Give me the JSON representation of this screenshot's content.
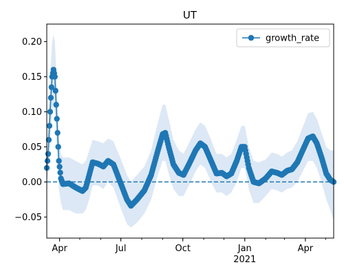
{
  "chart_data": {
    "type": "line",
    "title": "UT",
    "xlabel": "",
    "ylabel": "",
    "x_range": [
      "2020-03-13",
      "2021-05-13"
    ],
    "ylim": [
      -0.08,
      0.225
    ],
    "y_ticks": [
      -0.05,
      0.0,
      0.05,
      0.1,
      0.15,
      0.2
    ],
    "y_tick_labels": [
      "−0.05",
      "0.00",
      "0.05",
      "0.10",
      "0.15",
      "0.20"
    ],
    "x_ticks": [
      {
        "date": "2020-04-01",
        "label": "Apr",
        "sublabel": ""
      },
      {
        "date": "2020-07-01",
        "label": "Jul",
        "sublabel": ""
      },
      {
        "date": "2020-10-01",
        "label": "Oct",
        "sublabel": ""
      },
      {
        "date": "2021-01-01",
        "label": "Jan",
        "sublabel": "2021"
      },
      {
        "date": "2021-04-01",
        "label": "Apr",
        "sublabel": ""
      }
    ],
    "reference_line": {
      "y": 0,
      "style": "dashed"
    },
    "grid": false,
    "legend": {
      "position": "top-right",
      "entries": [
        "growth_rate"
      ]
    },
    "colors": {
      "line": "#1f77b4",
      "band": "#dce8f5",
      "reference": "#1f77b4"
    },
    "series": [
      {
        "name": "growth_rate",
        "interval": "shaded uncertainty band",
        "points": [
          {
            "date": "2020-03-13",
            "y": 0.02,
            "lo": 0.0,
            "hi": 0.05
          },
          {
            "date": "2020-03-15",
            "y": 0.04,
            "lo": 0.01,
            "hi": 0.08
          },
          {
            "date": "2020-03-17",
            "y": 0.08,
            "lo": 0.04,
            "hi": 0.13
          },
          {
            "date": "2020-03-19",
            "y": 0.12,
            "lo": 0.07,
            "hi": 0.17
          },
          {
            "date": "2020-03-21",
            "y": 0.15,
            "lo": 0.1,
            "hi": 0.2
          },
          {
            "date": "2020-03-23",
            "y": 0.16,
            "lo": 0.11,
            "hi": 0.21
          },
          {
            "date": "2020-03-25",
            "y": 0.15,
            "lo": 0.1,
            "hi": 0.2
          },
          {
            "date": "2020-03-27",
            "y": 0.11,
            "lo": 0.06,
            "hi": 0.16
          },
          {
            "date": "2020-03-29",
            "y": 0.07,
            "lo": 0.025,
            "hi": 0.115
          },
          {
            "date": "2020-03-31",
            "y": 0.03,
            "lo": -0.01,
            "hi": 0.07
          },
          {
            "date": "2020-04-03",
            "y": 0.005,
            "lo": -0.03,
            "hi": 0.04
          },
          {
            "date": "2020-04-06",
            "y": -0.003,
            "lo": -0.04,
            "hi": 0.035
          },
          {
            "date": "2020-04-15",
            "y": -0.002,
            "lo": -0.04,
            "hi": 0.035
          },
          {
            "date": "2020-04-25",
            "y": -0.008,
            "lo": -0.045,
            "hi": 0.03
          },
          {
            "date": "2020-05-05",
            "y": -0.013,
            "lo": -0.045,
            "hi": 0.025
          },
          {
            "date": "2020-05-10",
            "y": -0.008,
            "lo": -0.04,
            "hi": 0.03
          },
          {
            "date": "2020-05-15",
            "y": 0.01,
            "lo": -0.025,
            "hi": 0.045
          },
          {
            "date": "2020-05-20",
            "y": 0.028,
            "lo": -0.005,
            "hi": 0.06
          },
          {
            "date": "2020-05-28",
            "y": 0.026,
            "lo": -0.005,
            "hi": 0.058
          },
          {
            "date": "2020-06-05",
            "y": 0.022,
            "lo": -0.01,
            "hi": 0.055
          },
          {
            "date": "2020-06-12",
            "y": 0.03,
            "lo": 0.0,
            "hi": 0.062
          },
          {
            "date": "2020-06-20",
            "y": 0.025,
            "lo": -0.008,
            "hi": 0.058
          },
          {
            "date": "2020-06-30",
            "y": 0.0,
            "lo": -0.035,
            "hi": 0.035
          },
          {
            "date": "2020-07-10",
            "y": -0.025,
            "lo": -0.06,
            "hi": 0.01
          },
          {
            "date": "2020-07-16",
            "y": -0.034,
            "lo": -0.065,
            "hi": 0.0
          },
          {
            "date": "2020-07-25",
            "y": -0.025,
            "lo": -0.058,
            "hi": 0.01
          },
          {
            "date": "2020-08-05",
            "y": -0.012,
            "lo": -0.045,
            "hi": 0.022
          },
          {
            "date": "2020-08-15",
            "y": 0.01,
            "lo": -0.025,
            "hi": 0.045
          },
          {
            "date": "2020-08-25",
            "y": 0.045,
            "lo": 0.01,
            "hi": 0.085
          },
          {
            "date": "2020-09-01",
            "y": 0.068,
            "lo": 0.03,
            "hi": 0.11
          },
          {
            "date": "2020-09-05",
            "y": 0.07,
            "lo": 0.03,
            "hi": 0.11
          },
          {
            "date": "2020-09-10",
            "y": 0.05,
            "lo": 0.012,
            "hi": 0.09
          },
          {
            "date": "2020-09-17",
            "y": 0.025,
            "lo": -0.01,
            "hi": 0.06
          },
          {
            "date": "2020-09-25",
            "y": 0.013,
            "lo": -0.02,
            "hi": 0.045
          },
          {
            "date": "2020-10-02",
            "y": 0.01,
            "lo": -0.02,
            "hi": 0.04
          },
          {
            "date": "2020-10-10",
            "y": 0.025,
            "lo": -0.005,
            "hi": 0.055
          },
          {
            "date": "2020-10-20",
            "y": 0.045,
            "lo": 0.015,
            "hi": 0.075
          },
          {
            "date": "2020-10-27",
            "y": 0.055,
            "lo": 0.025,
            "hi": 0.085
          },
          {
            "date": "2020-11-03",
            "y": 0.05,
            "lo": 0.02,
            "hi": 0.08
          },
          {
            "date": "2020-11-12",
            "y": 0.03,
            "lo": 0.0,
            "hi": 0.06
          },
          {
            "date": "2020-11-20",
            "y": 0.012,
            "lo": -0.015,
            "hi": 0.04
          },
          {
            "date": "2020-11-28",
            "y": 0.013,
            "lo": -0.015,
            "hi": 0.04
          },
          {
            "date": "2020-12-05",
            "y": 0.008,
            "lo": -0.02,
            "hi": 0.035
          },
          {
            "date": "2020-12-12",
            "y": 0.012,
            "lo": -0.015,
            "hi": 0.04
          },
          {
            "date": "2020-12-20",
            "y": 0.03,
            "lo": 0.0,
            "hi": 0.06
          },
          {
            "date": "2020-12-27",
            "y": 0.05,
            "lo": 0.02,
            "hi": 0.08
          },
          {
            "date": "2021-01-01",
            "y": 0.05,
            "lo": 0.02,
            "hi": 0.08
          },
          {
            "date": "2021-01-07",
            "y": 0.02,
            "lo": -0.01,
            "hi": 0.05
          },
          {
            "date": "2021-01-14",
            "y": 0.0,
            "lo": -0.03,
            "hi": 0.03
          },
          {
            "date": "2021-01-22",
            "y": -0.002,
            "lo": -0.03,
            "hi": 0.028
          },
          {
            "date": "2021-02-01",
            "y": 0.005,
            "lo": -0.02,
            "hi": 0.032
          },
          {
            "date": "2021-02-10",
            "y": 0.015,
            "lo": -0.01,
            "hi": 0.042
          },
          {
            "date": "2021-02-18",
            "y": 0.013,
            "lo": -0.012,
            "hi": 0.04
          },
          {
            "date": "2021-02-25",
            "y": 0.01,
            "lo": -0.015,
            "hi": 0.036
          },
          {
            "date": "2021-03-05",
            "y": 0.016,
            "lo": -0.01,
            "hi": 0.042
          },
          {
            "date": "2021-03-12",
            "y": 0.018,
            "lo": -0.008,
            "hi": 0.045
          },
          {
            "date": "2021-03-20",
            "y": 0.028,
            "lo": 0.0,
            "hi": 0.058
          },
          {
            "date": "2021-03-28",
            "y": 0.045,
            "lo": 0.015,
            "hi": 0.078
          },
          {
            "date": "2021-04-05",
            "y": 0.062,
            "lo": 0.03,
            "hi": 0.098
          },
          {
            "date": "2021-04-12",
            "y": 0.065,
            "lo": 0.03,
            "hi": 0.1
          },
          {
            "date": "2021-04-18",
            "y": 0.055,
            "lo": 0.02,
            "hi": 0.09
          },
          {
            "date": "2021-04-25",
            "y": 0.035,
            "lo": 0.0,
            "hi": 0.07
          },
          {
            "date": "2021-05-02",
            "y": 0.012,
            "lo": -0.025,
            "hi": 0.05
          },
          {
            "date": "2021-05-08",
            "y": 0.003,
            "lo": -0.04,
            "hi": 0.045
          },
          {
            "date": "2021-05-13",
            "y": 0.0,
            "lo": -0.055,
            "hi": 0.045
          }
        ]
      }
    ]
  }
}
